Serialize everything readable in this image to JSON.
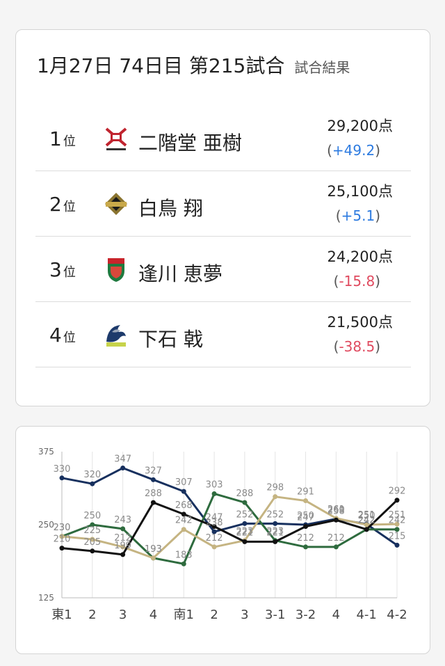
{
  "header": {
    "title": "1月27日  74日目  第215試合",
    "subtitle": "試合結果"
  },
  "results": [
    {
      "rank": "1",
      "rank_unit": "位",
      "name": "二階堂 亜樹",
      "score": "29,200点",
      "delta": "+49.2",
      "delta_sign": "pos",
      "team_logo": "fuji-mk-logo-icon",
      "team_color": "#c0242f"
    },
    {
      "rank": "2",
      "rank_unit": "位",
      "name": "白鳥 翔",
      "score": "25,100点",
      "delta": "+5.1",
      "delta_sign": "pos",
      "team_logo": "abemas-logo-icon",
      "team_color": "#8a7430"
    },
    {
      "rank": "3",
      "rank_unit": "位",
      "name": "逢川 恵夢",
      "score": "24,200点",
      "delta": "-15.8",
      "delta_sign": "neg",
      "team_logo": "jets-logo-icon",
      "team_color": "#1f7a3f"
    },
    {
      "rank": "4",
      "rank_unit": "位",
      "name": "下石 戟",
      "score": "21,500点",
      "delta": "-38.5",
      "delta_sign": "neg",
      "team_logo": "beast-logo-icon",
      "team_color": "#1d3a6b"
    }
  ],
  "chart_data": {
    "type": "line",
    "categories": [
      "東1",
      "2",
      "3",
      "4",
      "南1",
      "2",
      "3",
      "3-1",
      "3-2",
      "4",
      "4-1",
      "4-2"
    ],
    "ylim": [
      125,
      375
    ],
    "yticks": [
      "375",
      "250",
      "125"
    ],
    "series": [
      {
        "color": "#17305e",
        "values": [
          330,
          320,
          347,
          327,
          307,
          238,
          252,
          252,
          250,
          260,
          251,
          215
        ]
      },
      {
        "color": "#2e6b3e",
        "values": [
          230,
          250,
          243,
          193,
          183,
          303,
          288,
          223,
          212,
          212,
          242,
          242
        ]
      },
      {
        "color": "#c5b482",
        "values": [
          230,
          225,
          212,
          193,
          242,
          212,
          223,
          298,
          291,
          261,
          250,
          251
        ]
      },
      {
        "color": "#111111",
        "values": [
          210,
          205,
          199,
          288,
          268,
          247,
          221,
          221,
          247,
          258,
          242,
          292
        ]
      }
    ]
  }
}
